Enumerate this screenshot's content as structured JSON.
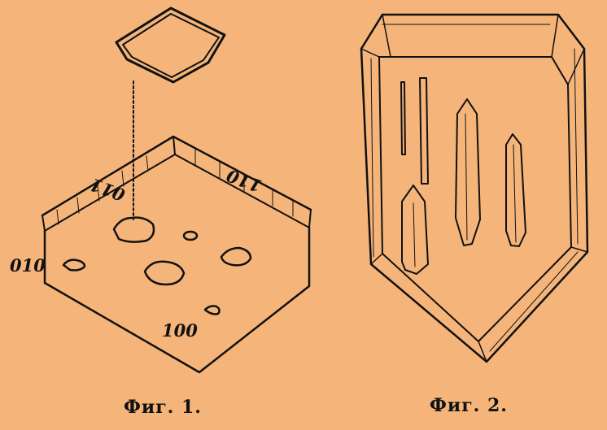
{
  "figure1": {
    "caption": "Фиг. 1.",
    "face_labels": {
      "face_010": "010",
      "face_100": "100",
      "face_011": "011",
      "face_110": "110"
    }
  },
  "figure2": {
    "caption": "Фиг. 2."
  },
  "colors": {
    "background": "#f5b57a",
    "ink": "#111111"
  }
}
